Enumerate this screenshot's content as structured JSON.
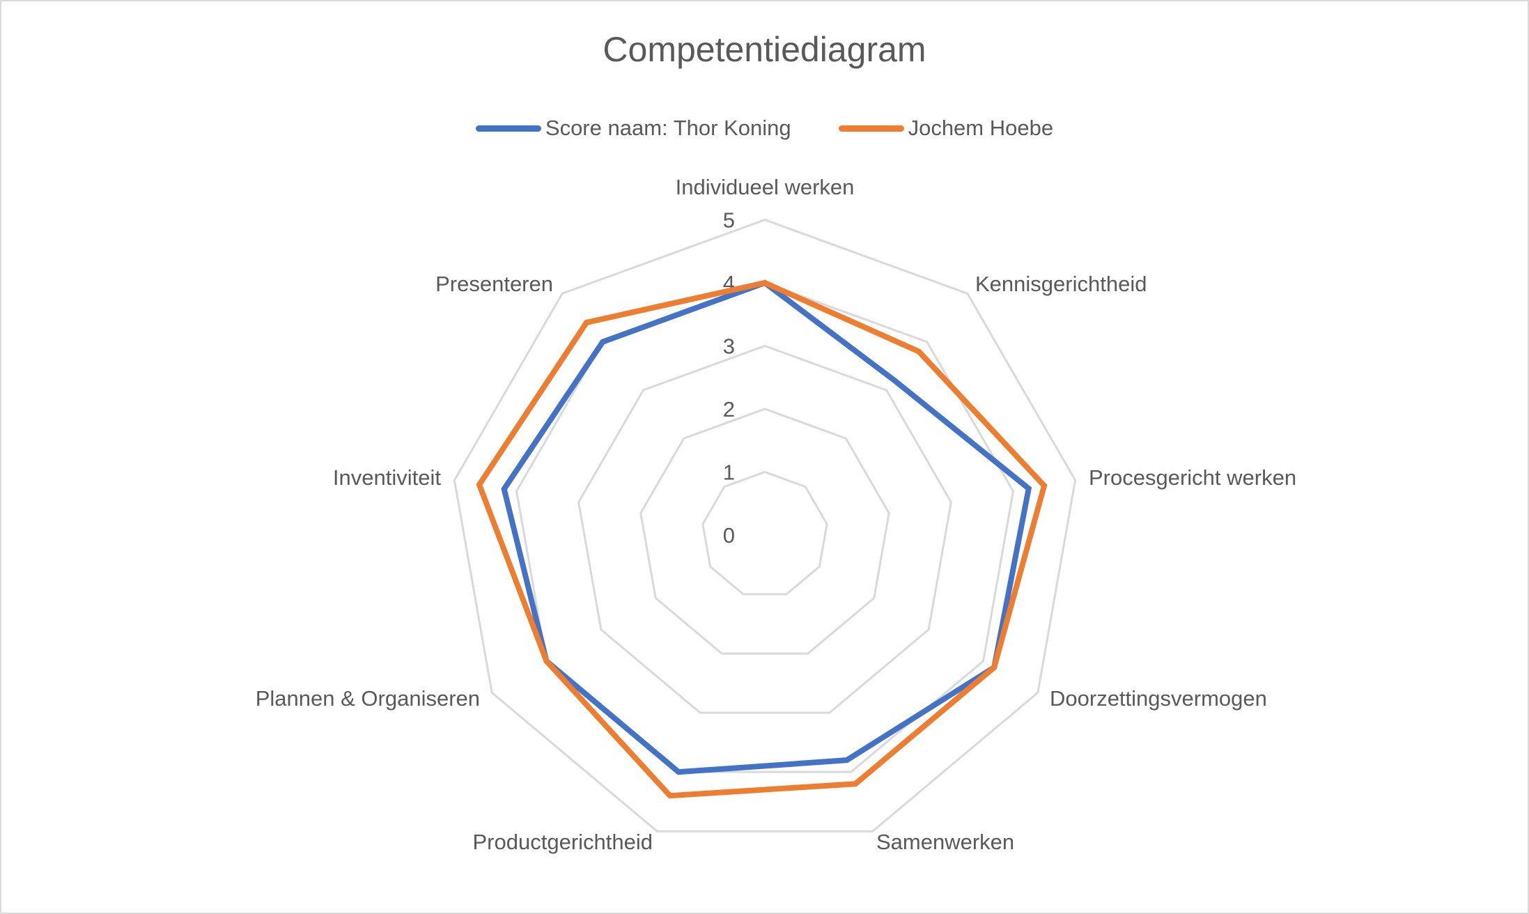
{
  "chart": {
    "title": "Competentiediagram",
    "legend": [
      {
        "label": "Score naam: Thor Koning",
        "color": "#4472C4"
      },
      {
        "label": "Jochem Hoebe",
        "color": "#ED7D31"
      }
    ]
  },
  "colors": {
    "text": "#595959",
    "grid": "#D9D9D9",
    "border": "#D9D9D9",
    "series_1": "#4472C4",
    "series_2": "#ED7D31"
  },
  "chart_data": {
    "type": "radar",
    "title": "Competentiediagram",
    "categories": [
      "Individueel werken",
      "Kennisgerichtheid",
      "Procesgericht werken",
      "Doorzettingsvermogen",
      "Samenwerken",
      "Productgerichtheid",
      "Plannen & Organiseren",
      "Inventiviteit",
      "Presenteren"
    ],
    "series": [
      {
        "name": "Score naam: Thor Koning",
        "color": "#4472C4",
        "values": [
          4.0,
          3.2,
          4.25,
          4.2,
          3.8,
          4.0,
          4.0,
          4.2,
          4.0
        ]
      },
      {
        "name": "Jochem Hoebe",
        "color": "#ED7D31",
        "values": [
          4.0,
          3.8,
          4.5,
          4.2,
          4.2,
          4.4,
          4.0,
          4.6,
          4.4
        ]
      }
    ],
    "ticks": [
      "0",
      "1",
      "2",
      "3",
      "4",
      "5"
    ],
    "rlim": [
      0,
      5
    ],
    "grid": true,
    "legend_position": "top"
  }
}
